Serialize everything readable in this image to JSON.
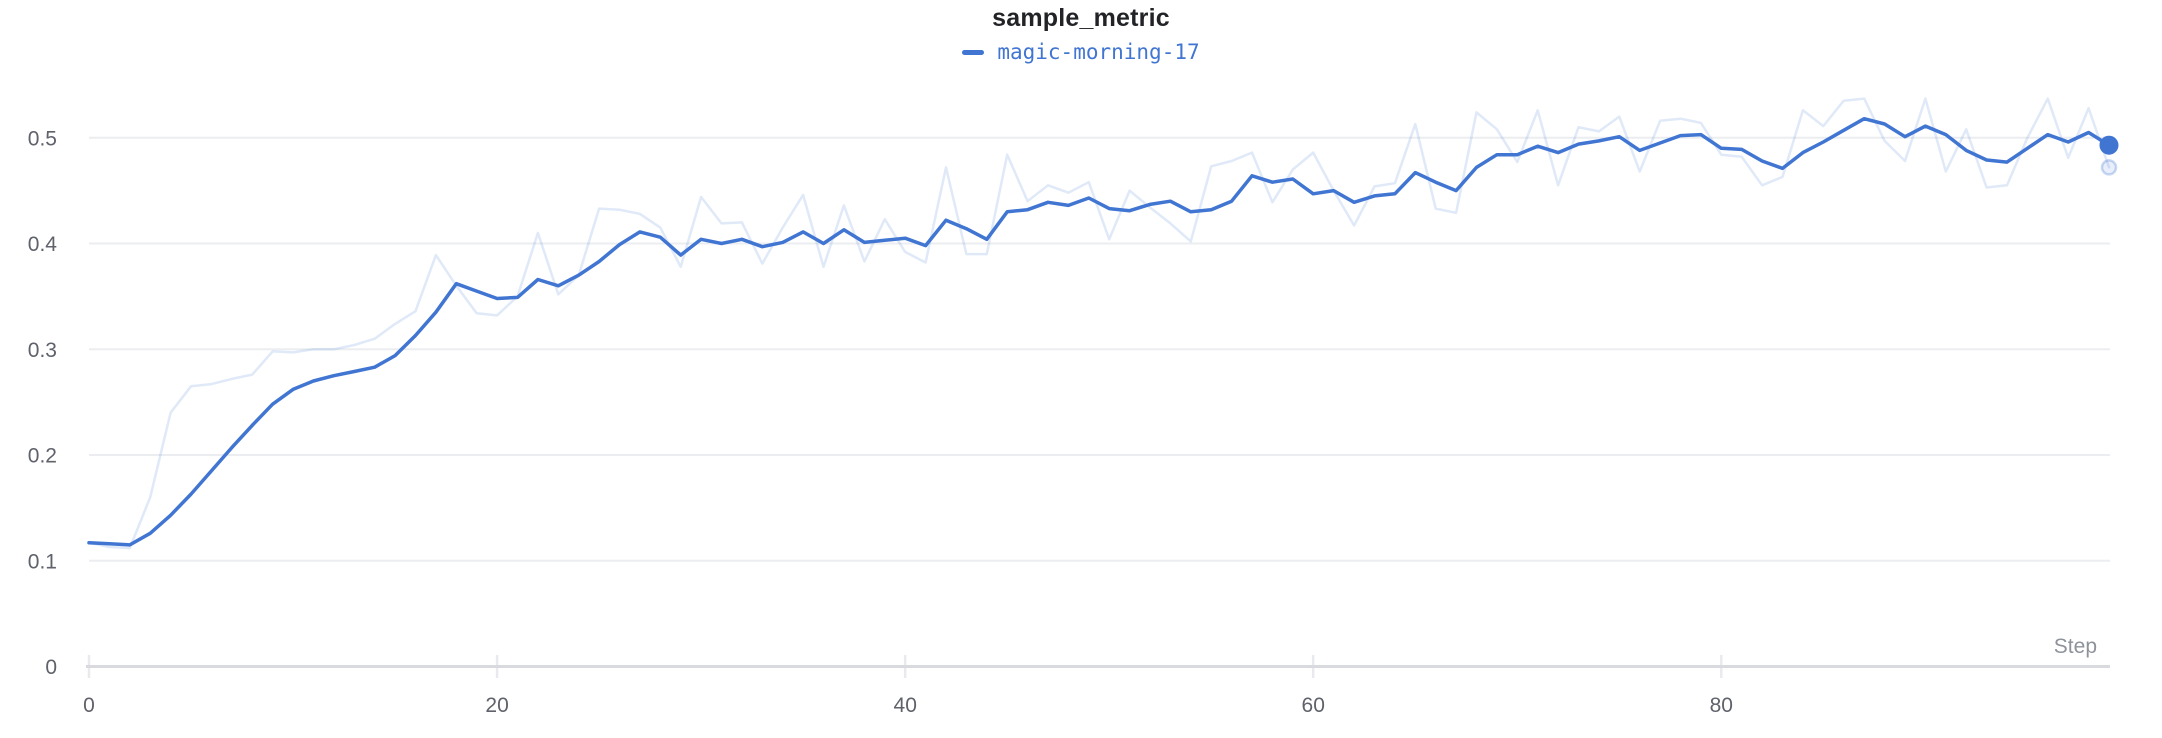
{
  "panel": {
    "title": "sample_metric"
  },
  "legend": {
    "series_label": "magic-morning-17"
  },
  "axes": {
    "x_label": "Step",
    "x_tick_labels": [
      "0",
      "20",
      "40",
      "60",
      "80"
    ],
    "x_tick_values": [
      0,
      20,
      40,
      60,
      80
    ],
    "y_tick_labels": [
      "0",
      "0.1",
      "0.2",
      "0.3",
      "0.4",
      "0.5"
    ],
    "y_tick_values": [
      0,
      0.1,
      0.2,
      0.3,
      0.4,
      0.5
    ]
  },
  "colors": {
    "accent": "#4175d2",
    "raw_line_opacity": 0.16,
    "grid": "#ebedf0",
    "axis": "#d8dade",
    "tick_notch": "#e8eaee",
    "tick_label": "#5f626b",
    "step_label": "#8e929a",
    "title": "#222327"
  },
  "chart_data": {
    "type": "line",
    "title": "sample_metric",
    "xlabel": "Step",
    "ylabel": "",
    "x_start": 0,
    "x_step": 1,
    "x_range": [
      0,
      99
    ],
    "ylim": [
      0,
      0.55
    ],
    "x_tick_values": [
      0,
      20,
      40,
      60,
      80
    ],
    "y_tick_values": [
      0,
      0.1,
      0.2,
      0.3,
      0.4,
      0.5
    ],
    "grid": true,
    "legend_position": "top-center",
    "series": [
      {
        "name": "magic-morning-17",
        "role": "raw",
        "opacity": 0.16,
        "values": [
          0.117,
          0.113,
          0.112,
          0.16,
          0.24,
          0.265,
          0.267,
          0.272,
          0.276,
          0.298,
          0.297,
          0.3,
          0.3,
          0.304,
          0.31,
          0.324,
          0.336,
          0.389,
          0.36,
          0.334,
          0.332,
          0.35,
          0.41,
          0.352,
          0.37,
          0.433,
          0.432,
          0.428,
          0.415,
          0.378,
          0.444,
          0.419,
          0.42,
          0.381,
          0.415,
          0.446,
          0.378,
          0.436,
          0.383,
          0.423,
          0.392,
          0.382,
          0.472,
          0.39,
          0.39,
          0.484,
          0.44,
          0.455,
          0.448,
          0.458,
          0.404,
          0.45,
          0.434,
          0.419,
          0.402,
          0.473,
          0.478,
          0.486,
          0.439,
          0.47,
          0.486,
          0.45,
          0.417,
          0.454,
          0.457,
          0.513,
          0.433,
          0.429,
          0.524,
          0.508,
          0.477,
          0.526,
          0.455,
          0.51,
          0.506,
          0.52,
          0.468,
          0.516,
          0.518,
          0.514,
          0.484,
          0.482,
          0.455,
          0.463,
          0.526,
          0.511,
          0.535,
          0.537,
          0.497,
          0.478,
          0.537,
          0.468,
          0.508,
          0.453,
          0.455,
          0.5,
          0.537,
          0.481,
          0.528,
          0.472
        ]
      },
      {
        "name": "magic-morning-17",
        "role": "smoothed",
        "opacity": 1,
        "values": [
          0.117,
          0.116,
          0.115,
          0.126,
          0.143,
          0.163,
          0.185,
          0.207,
          0.228,
          0.248,
          0.262,
          0.27,
          0.275,
          0.279,
          0.283,
          0.294,
          0.313,
          0.335,
          0.362,
          0.355,
          0.348,
          0.349,
          0.366,
          0.36,
          0.37,
          0.383,
          0.399,
          0.411,
          0.406,
          0.389,
          0.404,
          0.4,
          0.404,
          0.397,
          0.401,
          0.411,
          0.4,
          0.413,
          0.401,
          0.403,
          0.405,
          0.398,
          0.422,
          0.414,
          0.404,
          0.43,
          0.432,
          0.439,
          0.436,
          0.443,
          0.433,
          0.431,
          0.437,
          0.44,
          0.43,
          0.432,
          0.44,
          0.464,
          0.458,
          0.461,
          0.447,
          0.45,
          0.439,
          0.445,
          0.447,
          0.467,
          0.458,
          0.45,
          0.472,
          0.484,
          0.484,
          0.492,
          0.486,
          0.494,
          0.497,
          0.501,
          0.488,
          0.495,
          0.502,
          0.503,
          0.49,
          0.489,
          0.478,
          0.471,
          0.486,
          0.496,
          0.507,
          0.518,
          0.513,
          0.501,
          0.511,
          0.503,
          0.488,
          0.479,
          0.477,
          0.49,
          0.503,
          0.496,
          0.505,
          0.493
        ]
      }
    ]
  }
}
